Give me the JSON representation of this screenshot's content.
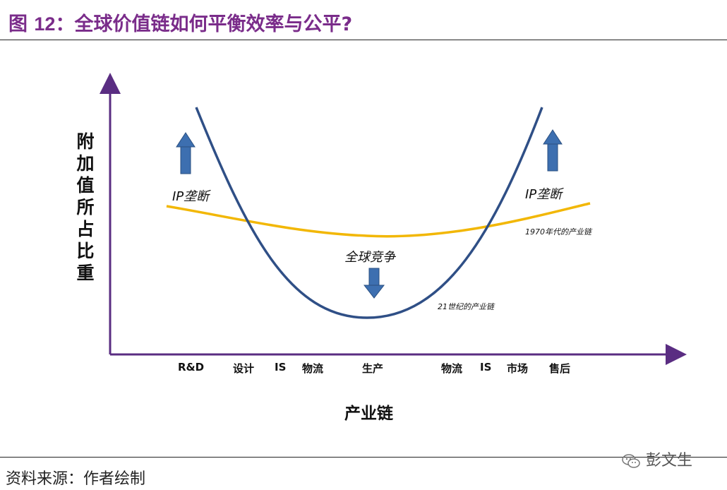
{
  "figure": {
    "title_prefix": "图",
    "title_number": "12",
    "title_text": "：全球价值链如何平衡效率与公平?"
  },
  "diagram": {
    "y_axis_label": "附加值所占比重",
    "x_axis_label": "产业链",
    "categories": [
      "R&D",
      "设计",
      "IS",
      "物流",
      "生产",
      "物流",
      "IS",
      "市场",
      "售后"
    ],
    "annotations": {
      "left_monopoly": "IP垄断",
      "right_monopoly": "IP垄断",
      "center_competition": "全球竞争",
      "curve_1970": "1970年代的产业链",
      "curve_21c": "21世纪的产业链"
    },
    "colors": {
      "title": "#7a2c8a",
      "axis": "#5a2d82",
      "curve_21c": "#2f4f86",
      "curve_1970": "#f2b705",
      "arrow": "#3d6fb0"
    }
  },
  "footer": {
    "source": "资料来源：作者绘制",
    "watermark": "彭文生"
  }
}
